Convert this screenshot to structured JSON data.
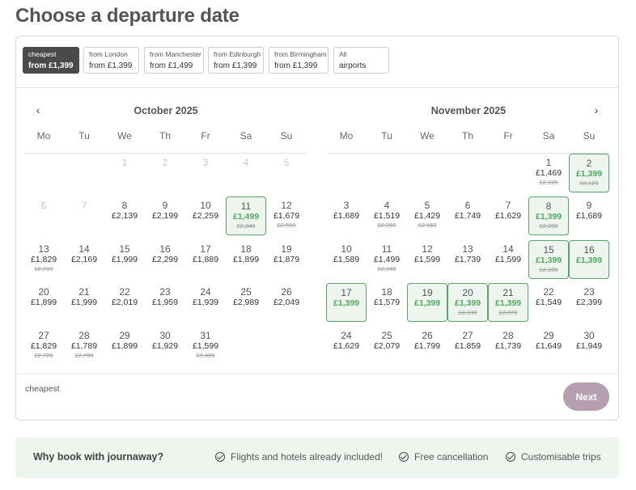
{
  "page": {
    "title": "Choose a departure date"
  },
  "filters": [
    {
      "line1": "cheapest",
      "line2": "from £1,399",
      "active": true
    },
    {
      "line1": "from London",
      "line2": "from £1,399",
      "active": false
    },
    {
      "line1": "from Manchester",
      "line2": "from £1,499",
      "active": false
    },
    {
      "line1": "from Edinburgh",
      "line2": "from £1,399",
      "active": false
    },
    {
      "line1": "from Birmingham",
      "line2": "from £1,399",
      "active": false
    },
    {
      "line1": "All",
      "line2": "airports",
      "active": false
    }
  ],
  "weekdays": [
    "Mo",
    "Tu",
    "We",
    "Th",
    "Fr",
    "Sa",
    "Su"
  ],
  "calendars": [
    {
      "title": "October 2025",
      "nav": "‹",
      "days": [
        {
          "d": "1",
          "disabled": true
        },
        {
          "d": "2",
          "disabled": true
        },
        {
          "d": "3",
          "disabled": true
        },
        {
          "d": "4",
          "disabled": true
        },
        {
          "d": "5",
          "disabled": true
        },
        {
          "d": "6",
          "disabled": true
        },
        {
          "d": "7",
          "disabled": true
        },
        {
          "d": "8",
          "price": "£2,139"
        },
        {
          "d": "9",
          "price": "£2,199"
        },
        {
          "d": "10",
          "price": "£2,259"
        },
        {
          "d": "11",
          "price": "£1,499",
          "old": "£2,349",
          "hl": true
        },
        {
          "d": "12",
          "price": "£1,679",
          "old": "£2,559"
        },
        {
          "d": "13",
          "price": "£1,829",
          "old": "£2,719"
        },
        {
          "d": "14",
          "price": "£2,169"
        },
        {
          "d": "15",
          "price": "£1,999"
        },
        {
          "d": "16",
          "price": "£2,299"
        },
        {
          "d": "17",
          "price": "£1,889"
        },
        {
          "d": "18",
          "price": "£1,899"
        },
        {
          "d": "19",
          "price": "£1,879"
        },
        {
          "d": "20",
          "price": "£1,899"
        },
        {
          "d": "21",
          "price": "£1,999"
        },
        {
          "d": "22",
          "price": "£2,019"
        },
        {
          "d": "23",
          "price": "£1,959"
        },
        {
          "d": "24",
          "price": "£1,939"
        },
        {
          "d": "25",
          "price": "£2,989"
        },
        {
          "d": "26",
          "price": "£2,049"
        },
        {
          "d": "27",
          "price": "£1,829",
          "old": "£2,729"
        },
        {
          "d": "28",
          "price": "£1,789",
          "old": "£2,709"
        },
        {
          "d": "29",
          "price": "£1,899"
        },
        {
          "d": "30",
          "price": "£1,929"
        },
        {
          "d": "31",
          "price": "£1,599",
          "old": "£2,489"
        }
      ]
    },
    {
      "title": "November 2025",
      "nav": "›",
      "days": [
        {
          "d": "1",
          "price": "£1,469",
          "old": "£2,229"
        },
        {
          "d": "2",
          "price": "£1,399",
          "old": "£2,129",
          "hl": true
        },
        {
          "d": "3",
          "price": "£1,689"
        },
        {
          "d": "4",
          "price": "£1,519",
          "old": "£2,269"
        },
        {
          "d": "5",
          "price": "£1,429",
          "old": "£2,169"
        },
        {
          "d": "6",
          "price": "£1,749"
        },
        {
          "d": "7",
          "price": "£1,629"
        },
        {
          "d": "8",
          "price": "£1,399",
          "old": "£2,099",
          "hl": true
        },
        {
          "d": "9",
          "price": "£1,689"
        },
        {
          "d": "10",
          "price": "£1,589"
        },
        {
          "d": "11",
          "price": "£1,499",
          "old": "£2,249"
        },
        {
          "d": "12",
          "price": "£1,599"
        },
        {
          "d": "13",
          "price": "£1,739"
        },
        {
          "d": "14",
          "price": "£1,599"
        },
        {
          "d": "15",
          "price": "£1,399",
          "old": "£2,109",
          "hl": true
        },
        {
          "d": "16",
          "price": "£1,399",
          "hl": true
        },
        {
          "d": "17",
          "price": "£1,399",
          "hl": true
        },
        {
          "d": "18",
          "price": "£1,579"
        },
        {
          "d": "19",
          "price": "£1,399",
          "hl": true
        },
        {
          "d": "20",
          "price": "£1,399",
          "old": "£2,139",
          "hl": true
        },
        {
          "d": "21",
          "price": "£1,399",
          "old": "£2,079",
          "hl": true
        },
        {
          "d": "22",
          "price": "£1,549"
        },
        {
          "d": "23",
          "price": "£2,399"
        },
        {
          "d": "24",
          "price": "£1,629"
        },
        {
          "d": "25",
          "price": "£2,079"
        },
        {
          "d": "26",
          "price": "£1,799"
        },
        {
          "d": "27",
          "price": "£1,859"
        },
        {
          "d": "28",
          "price": "£1,739"
        },
        {
          "d": "29",
          "price": "£1,649"
        },
        {
          "d": "30",
          "price": "£1,949"
        }
      ]
    }
  ],
  "footer": {
    "legend": "cheapest",
    "next_label": "Next"
  },
  "why": {
    "title": "Why book with journaway?",
    "items": [
      "Flights and hotels already included!",
      "Free cancellation",
      "Customisable trips"
    ]
  },
  "colors": {
    "highlight_border": "#5aa36a",
    "highlight_bg": "#eef5ef",
    "next_button": "#b79fb2",
    "active_chip": "#4a4a4a"
  }
}
